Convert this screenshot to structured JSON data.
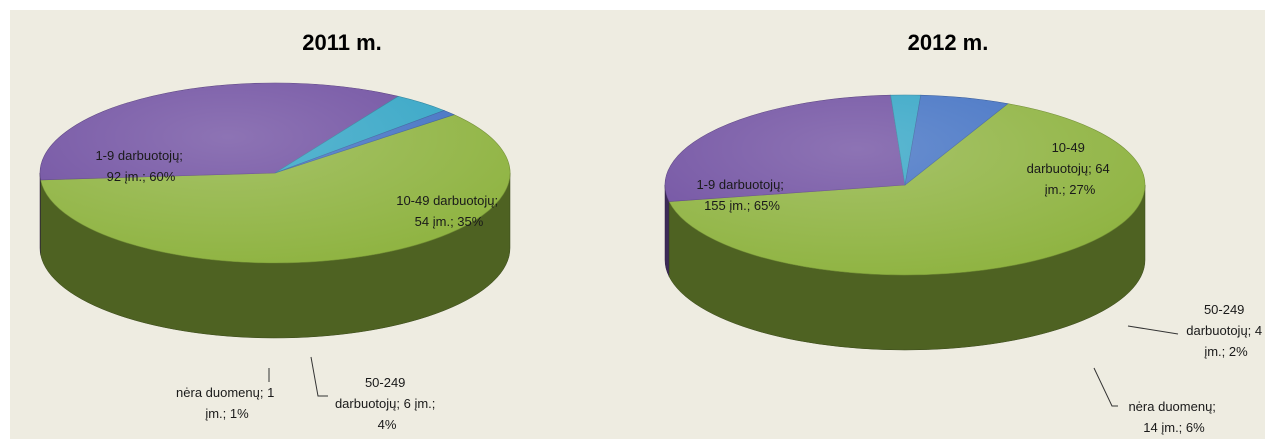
{
  "chart_data": [
    {
      "type": "pie",
      "title": "2011 m.",
      "slices": [
        {
          "category": "1-9 darbuotojų",
          "count": 92,
          "percent": 60,
          "label_lines": [
            "1-9 darbuotojų;",
            "92 įm.; 60%"
          ],
          "color": "#8db23e"
        },
        {
          "category": "10-49 darbuotojų",
          "count": 54,
          "percent": 35,
          "label_lines": [
            "10-49 darbuotojų;",
            "54 įm.; 35%"
          ],
          "color": "#6d4c9f"
        },
        {
          "category": "50-249 darbuotojų",
          "count": 6,
          "percent": 4,
          "label_lines": [
            "50-249",
            "darbuotojų; 6 įm.;",
            "4%"
          ],
          "color": "#2fa3c4"
        },
        {
          "category": "nėra duomenų",
          "count": 1,
          "percent": 1,
          "label_lines": [
            "nėra duomenų; 1",
            "įm.; 1%"
          ],
          "color": "#3f6fc2"
        }
      ]
    },
    {
      "type": "pie",
      "title": "2012 m.",
      "slices": [
        {
          "category": "1-9 darbuotojų",
          "count": 155,
          "percent": 65,
          "label_lines": [
            "1-9 darbuotojų;",
            "155 įm.; 65%"
          ],
          "color": "#8db23e"
        },
        {
          "category": "10-49 darbuotojų",
          "count": 64,
          "percent": 27,
          "label_lines": [
            "10-49",
            "darbuotojų; 64",
            "įm.; 27%"
          ],
          "color": "#6d4c9f"
        },
        {
          "category": "50-249 darbuotojų",
          "count": 4,
          "percent": 2,
          "label_lines": [
            "50-249",
            "darbuotojų; 4",
            "įm.; 2%"
          ],
          "color": "#2fa3c4"
        },
        {
          "category": "nėra duomenų",
          "count": 14,
          "percent": 6,
          "label_lines": [
            "nėra duomenų;",
            "14 įm.; 6%"
          ],
          "color": "#3f6fc2"
        }
      ]
    }
  ]
}
